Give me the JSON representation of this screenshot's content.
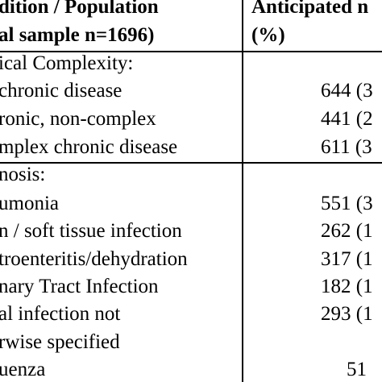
{
  "header": {
    "condition_line1": "dition / Population",
    "condition_line2": "al sample n=1696)",
    "anticipated_line1": "Anticipated n",
    "anticipated_line2": "(%)"
  },
  "sections": {
    "medical_complexity": {
      "heading": "ical Complexity:",
      "rows": [
        {
          "label": "chronic disease",
          "value": "644 (3"
        },
        {
          "label": "ronic, non-complex",
          "value": "441 (2"
        },
        {
          "label": "mplex chronic disease",
          "value": "611 (3"
        }
      ]
    },
    "diagnosis": {
      "heading": "nosis:",
      "rows": [
        {
          "label": "umonia",
          "value": "551 (3"
        },
        {
          "label": "n / soft tissue infection",
          "value": "262 (1"
        },
        {
          "label": "troenteritis/dehydration",
          "value": "317 (1"
        },
        {
          "label": "nary Tract Infection",
          "value": "182 (1"
        },
        {
          "label": "al infection not",
          "value": "293 (1"
        },
        {
          "label": "rwise specified",
          "value": ""
        },
        {
          "label": "uenza",
          "value": "51"
        }
      ]
    }
  }
}
